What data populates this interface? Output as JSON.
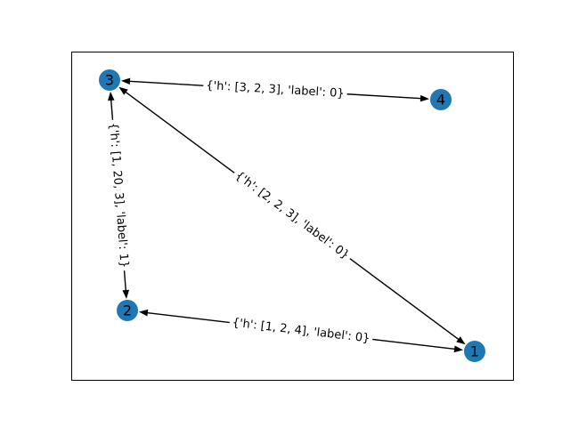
{
  "graph": {
    "node_color": "#1f77b4",
    "edge_color": "#000000",
    "nodes": [
      {
        "id": "1",
        "label": "1"
      },
      {
        "id": "2",
        "label": "2"
      },
      {
        "id": "3",
        "label": "3"
      },
      {
        "id": "4",
        "label": "4"
      }
    ],
    "edges": [
      {
        "id": "3-4",
        "source": "3",
        "target": "4",
        "bidirectional": true,
        "label": "{'h': [3, 2, 3], 'label': 0}"
      },
      {
        "id": "3-2",
        "source": "3",
        "target": "2",
        "bidirectional": true,
        "label": "{'h': [1, 20, 3], 'label': 1}"
      },
      {
        "id": "3-1",
        "source": "3",
        "target": "1",
        "bidirectional": true,
        "label": "{'h': [2, 2, 3], 'label': 0}"
      },
      {
        "id": "2-1",
        "source": "2",
        "target": "1",
        "bidirectional": true,
        "label": "{'h': [1, 2, 4], 'label': 0}"
      }
    ]
  }
}
